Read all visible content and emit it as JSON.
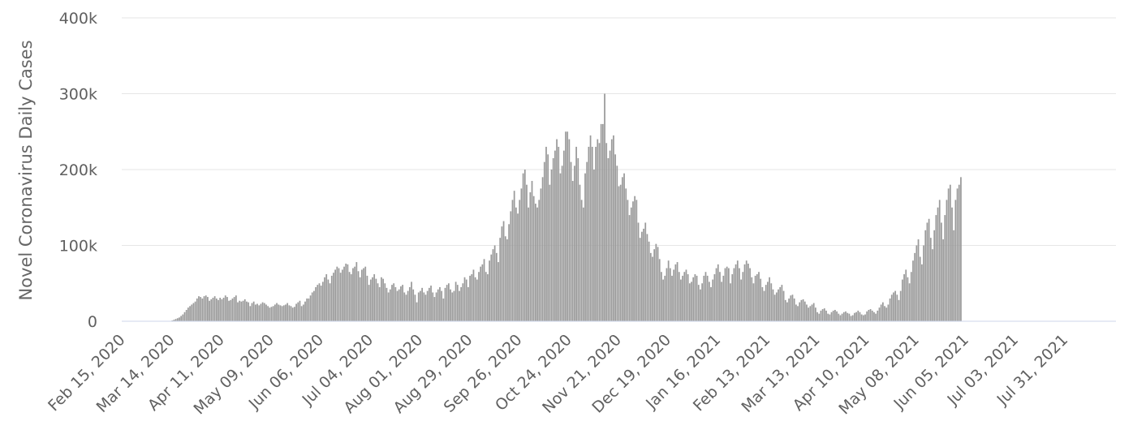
{
  "chart_data": {
    "type": "bar",
    "title": "",
    "ylabel": "Novel Coronavirus Daily Cases",
    "xlabel": "",
    "ylim": [
      0,
      400000
    ],
    "grid": true,
    "legend": "none",
    "bar_color": "#9a9a9a",
    "y_ticks": [
      {
        "value": 0,
        "label": "0"
      },
      {
        "value": 100000,
        "label": "100k"
      },
      {
        "value": 200000,
        "label": "200k"
      },
      {
        "value": 300000,
        "label": "300k"
      },
      {
        "value": 400000,
        "label": "400k"
      }
    ],
    "x_start": "2020-02-15",
    "x_end": "2021-08-28",
    "x_ticks": [
      {
        "date": "2020-02-15",
        "label": "Feb 15, 2020"
      },
      {
        "date": "2020-03-14",
        "label": "Mar 14, 2020"
      },
      {
        "date": "2020-04-11",
        "label": "Apr 11, 2020"
      },
      {
        "date": "2020-05-09",
        "label": "May 09, 2020"
      },
      {
        "date": "2020-06-06",
        "label": "Jun 06, 2020"
      },
      {
        "date": "2020-07-04",
        "label": "Jul 04, 2020"
      },
      {
        "date": "2020-08-01",
        "label": "Aug 01, 2020"
      },
      {
        "date": "2020-08-29",
        "label": "Aug 29, 2020"
      },
      {
        "date": "2020-09-26",
        "label": "Sep 26, 2020"
      },
      {
        "date": "2020-10-24",
        "label": "Oct 24, 2020"
      },
      {
        "date": "2020-11-21",
        "label": "Nov 21, 2020"
      },
      {
        "date": "2020-12-19",
        "label": "Dec 19, 2020"
      },
      {
        "date": "2021-01-16",
        "label": "Jan 16, 2021"
      },
      {
        "date": "2021-02-13",
        "label": "Feb 13, 2021"
      },
      {
        "date": "2021-03-13",
        "label": "Mar 13, 2021"
      },
      {
        "date": "2021-04-10",
        "label": "Apr 10, 2021"
      },
      {
        "date": "2021-05-08",
        "label": "May 08, 2021"
      },
      {
        "date": "2021-06-05",
        "label": "Jun 05, 2021"
      },
      {
        "date": "2021-07-03",
        "label": "Jul 03, 2021"
      },
      {
        "date": "2021-07-31",
        "label": "Jul 31, 2021"
      }
    ],
    "daily_cases": [
      0,
      0,
      0,
      0,
      0,
      0,
      0,
      0,
      0,
      0,
      0,
      0,
      0,
      0,
      0,
      0,
      0,
      0,
      0,
      0,
      0,
      0,
      0,
      0,
      0,
      0,
      0,
      0,
      1000,
      2000,
      3000,
      4000,
      5000,
      7000,
      9000,
      12000,
      15000,
      18000,
      20000,
      22000,
      24000,
      26000,
      30000,
      33000,
      32000,
      30000,
      33000,
      34000,
      32000,
      27000,
      29000,
      31000,
      33000,
      30000,
      28000,
      31000,
      29000,
      31000,
      34000,
      32000,
      27000,
      28000,
      30000,
      32000,
      34000,
      25000,
      27000,
      26000,
      27000,
      29000,
      26000,
      25000,
      20000,
      24000,
      26000,
      22000,
      23000,
      21000,
      23000,
      25000,
      24000,
      22000,
      20000,
      18000,
      19000,
      20000,
      22000,
      24000,
      22000,
      21000,
      20000,
      21000,
      22000,
      24000,
      21000,
      20000,
      18000,
      19000,
      23000,
      25000,
      27000,
      20000,
      22000,
      26000,
      30000,
      30000,
      34000,
      38000,
      40000,
      45000,
      48000,
      50000,
      47000,
      52000,
      58000,
      62000,
      55000,
      50000,
      60000,
      64000,
      68000,
      72000,
      70000,
      64000,
      68000,
      72000,
      76000,
      75000,
      65000,
      62000,
      70000,
      72000,
      78000,
      66000,
      58000,
      68000,
      70000,
      72000,
      60000,
      48000,
      55000,
      58000,
      62000,
      56000,
      50000,
      45000,
      58000,
      56000,
      50000,
      44000,
      38000,
      42000,
      48000,
      50000,
      45000,
      40000,
      42000,
      46000,
      48000,
      38000,
      35000,
      40000,
      45000,
      52000,
      42000,
      35000,
      25000,
      38000,
      40000,
      44000,
      38000,
      35000,
      40000,
      44000,
      47000,
      38000,
      32000,
      38000,
      42000,
      45000,
      40000,
      30000,
      44000,
      48000,
      50000,
      42000,
      38000,
      40000,
      52000,
      48000,
      40000,
      45000,
      50000,
      58000,
      55000,
      45000,
      60000,
      62000,
      68000,
      58000,
      55000,
      65000,
      72000,
      75000,
      82000,
      65000,
      62000,
      80000,
      88000,
      95000,
      100000,
      90000,
      78000,
      110000,
      125000,
      132000,
      112000,
      108000,
      128000,
      145000,
      160000,
      172000,
      150000,
      142000,
      160000,
      175000,
      195000,
      200000,
      180000,
      150000,
      170000,
      185000,
      165000,
      155000,
      150000,
      160000,
      175000,
      190000,
      210000,
      230000,
      220000,
      180000,
      200000,
      215000,
      225000,
      240000,
      230000,
      195000,
      205000,
      225000,
      250000,
      250000,
      240000,
      210000,
      185000,
      205000,
      230000,
      215000,
      180000,
      160000,
      150000,
      195000,
      210000,
      230000,
      245000,
      230000,
      200000,
      230000,
      240000,
      235000,
      260000,
      260000,
      300000,
      235000,
      215000,
      225000,
      240000,
      245000,
      220000,
      205000,
      178000,
      180000,
      190000,
      195000,
      175000,
      160000,
      140000,
      150000,
      158000,
      165000,
      160000,
      130000,
      110000,
      118000,
      122000,
      130000,
      115000,
      105000,
      90000,
      85000,
      95000,
      102000,
      98000,
      82000,
      65000,
      55000,
      60000,
      70000,
      80000,
      70000,
      60000,
      68000,
      75000,
      78000,
      65000,
      55000,
      60000,
      65000,
      68000,
      62000,
      50000,
      52000,
      58000,
      62000,
      60000,
      48000,
      42000,
      50000,
      60000,
      65000,
      60000,
      52000,
      45000,
      55000,
      62000,
      70000,
      75000,
      65000,
      52000,
      60000,
      70000,
      72000,
      70000,
      50000,
      62000,
      70000,
      75000,
      80000,
      70000,
      55000,
      65000,
      75000,
      80000,
      76000,
      70000,
      58000,
      50000,
      60000,
      62000,
      65000,
      56000,
      45000,
      40000,
      48000,
      52000,
      58000,
      50000,
      42000,
      35000,
      38000,
      42000,
      45000,
      48000,
      40000,
      28000,
      25000,
      30000,
      34000,
      35000,
      30000,
      22000,
      20000,
      25000,
      28000,
      29000,
      26000,
      22000,
      18000,
      20000,
      22000,
      24000,
      18000,
      12000,
      10000,
      14000,
      16000,
      17000,
      14000,
      10000,
      9000,
      12000,
      14000,
      15000,
      13000,
      10000,
      8000,
      10000,
      12000,
      13000,
      11000,
      10000,
      7000,
      8000,
      11000,
      12000,
      14000,
      12000,
      9000,
      8000,
      9000,
      13000,
      15000,
      16000,
      14000,
      12000,
      10000,
      14000,
      18000,
      22000,
      25000,
      20000,
      18000,
      22000,
      30000,
      35000,
      38000,
      40000,
      35000,
      28000,
      40000,
      55000,
      62000,
      68000,
      58000,
      50000,
      65000,
      80000,
      90000,
      100000,
      108000,
      85000,
      75000,
      100000,
      120000,
      130000,
      135000,
      110000,
      95000,
      120000,
      140000,
      150000,
      160000,
      130000,
      108000,
      140000,
      160000,
      175000,
      180000,
      150000,
      120000,
      160000,
      175000,
      180000,
      190000
    ]
  }
}
